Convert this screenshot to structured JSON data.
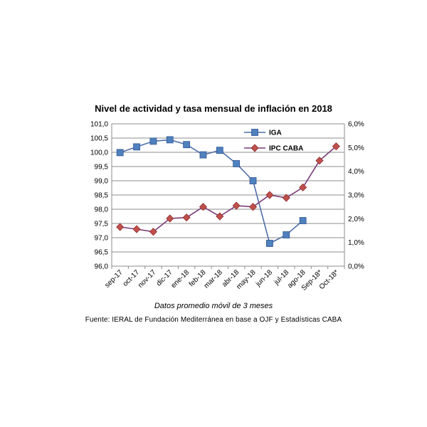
{
  "chart_data": {
    "type": "line",
    "title": "Nivel de actividad y tasa mensual de inflación en 2018",
    "categories": [
      "sep-17",
      "oct-17",
      "nov-17",
      "dic-17",
      "ene-18",
      "feb-18",
      "mar-18",
      "abr-18",
      "may-18",
      "jun-18",
      "jul-18",
      "ago-18",
      "Sep-18*",
      "Oct-18*"
    ],
    "y_left": {
      "ylim": [
        96.0,
        101.0
      ],
      "ticks": [
        "96,0",
        "96,5",
        "97,0",
        "97,5",
        "98,0",
        "98,5",
        "99,0",
        "99,5",
        "100,0",
        "100,5",
        "101,0"
      ]
    },
    "y_right": {
      "ylim": [
        0.0,
        6.0
      ],
      "ticks": [
        "0,0%",
        "1,0%",
        "2,0%",
        "3,0%",
        "4,0%",
        "5,0%",
        "6,0%"
      ]
    },
    "grid": true,
    "legend_position": "top-right",
    "series": [
      {
        "name": "IGA",
        "axis": "left",
        "color": "#4f81bd",
        "line_color": "#4f6fa8",
        "marker": "square",
        "values": [
          99.99,
          100.19,
          100.39,
          100.44,
          100.27,
          99.91,
          100.07,
          99.6,
          99.0,
          96.8,
          97.1,
          97.6,
          null,
          null
        ]
      },
      {
        "name": "IPC CABA",
        "axis": "right",
        "color": "#c0504d",
        "line_color": "#7a3a78",
        "marker": "diamond",
        "values": [
          1.65,
          1.56,
          1.45,
          2.01,
          2.05,
          2.5,
          2.1,
          2.55,
          2.5,
          3.0,
          2.88,
          3.32,
          4.45,
          5.05
        ]
      }
    ]
  },
  "captions": {
    "subtitle": "Datos promedio móvil de 3 meses",
    "source": "Fuente: IERAL de Fundación Mediterránea en base a OJF y Estadísticas CABA"
  }
}
